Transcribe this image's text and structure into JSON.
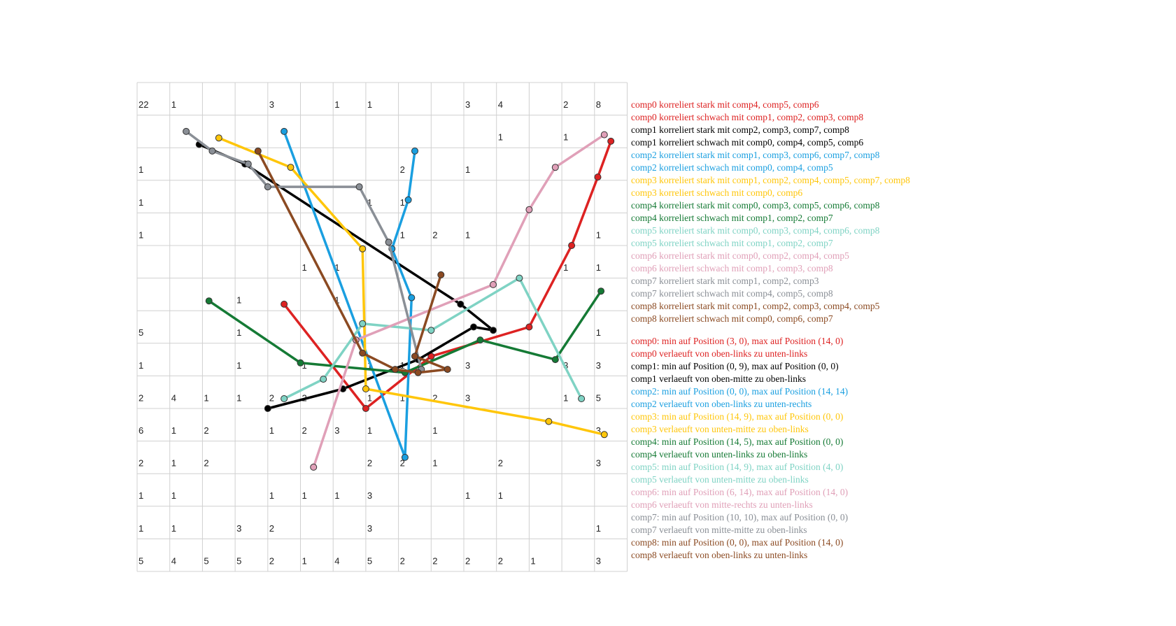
{
  "chart_data": {
    "type": "line",
    "grid": true,
    "x_range": [
      0,
      14
    ],
    "y_range": [
      0,
      14
    ],
    "cell_counts": [
      [
        "22",
        "1",
        "",
        "",
        "3",
        "",
        "1",
        "1",
        "",
        "",
        "3",
        "4",
        "",
        "2",
        "8"
      ],
      [
        "",
        "",
        "",
        "",
        "",
        "",
        "",
        "",
        "",
        "",
        "",
        "1",
        "",
        "1",
        ""
      ],
      [
        "1",
        "",
        "",
        "",
        "",
        "",
        "",
        "",
        "2",
        "",
        "1",
        "",
        "",
        "",
        ""
      ],
      [
        "1",
        "",
        "",
        "",
        "",
        "",
        "",
        "1",
        "1",
        "",
        "",
        "",
        "",
        "",
        ""
      ],
      [
        "1",
        "",
        "",
        "",
        "",
        "",
        "",
        "",
        "1",
        "2",
        "1",
        "",
        "",
        "",
        "1"
      ],
      [
        "",
        "",
        "",
        "",
        "",
        "1",
        "1",
        "",
        "",
        "",
        "",
        "",
        "",
        "1",
        "1"
      ],
      [
        "",
        "",
        "",
        "1",
        "",
        "",
        "1",
        "",
        "",
        "",
        "",
        "",
        "",
        "",
        ""
      ],
      [
        "5",
        "",
        "",
        "1",
        "",
        "",
        "",
        "",
        "",
        "",
        "",
        "",
        "",
        "",
        "1"
      ],
      [
        "1",
        "",
        "",
        "1",
        "",
        "1",
        "",
        "1",
        "1",
        "",
        "3",
        "",
        "",
        "3",
        "3"
      ],
      [
        "2",
        "4",
        "1",
        "1",
        "2",
        "2",
        "",
        "1",
        "1",
        "2",
        "3",
        "",
        "",
        "1",
        "5"
      ],
      [
        "6",
        "1",
        "2",
        "",
        "1",
        "2",
        "3",
        "1",
        "",
        "1",
        "",
        "",
        "",
        "",
        "3"
      ],
      [
        "2",
        "1",
        "2",
        "",
        "",
        "",
        "",
        "2",
        "2",
        "1",
        "",
        "2",
        "",
        "",
        "3"
      ],
      [
        "1",
        "1",
        "",
        "",
        "1",
        "1",
        "1",
        "3",
        "",
        "",
        "1",
        "1",
        "",
        "",
        ""
      ],
      [
        "1",
        "1",
        "",
        "3",
        "2",
        "",
        "",
        "3",
        "",
        "",
        "",
        "",
        "",
        "",
        "1"
      ],
      [
        "5",
        "4",
        "5",
        "5",
        "2",
        "1",
        "4",
        "5",
        "2",
        "2",
        "2",
        "2",
        "1",
        "",
        "3"
      ]
    ],
    "series": [
      {
        "name": "comp0",
        "color": "#dd2222",
        "points": [
          [
            4,
            6.3
          ],
          [
            6.5,
            9.5
          ],
          [
            8.5,
            7.9
          ],
          [
            11.5,
            7.0
          ],
          [
            12.8,
            4.5
          ],
          [
            13.6,
            2.4
          ],
          [
            14,
            1.3
          ]
        ]
      },
      {
        "name": "comp1",
        "color": "#000000",
        "points": [
          [
            3.5,
            9.5
          ],
          [
            5.8,
            8.9
          ],
          [
            8.1,
            8.0
          ],
          [
            9.8,
            7.0
          ],
          [
            10.4,
            7.1
          ],
          [
            9.4,
            6.3
          ],
          [
            2.8,
            2.0
          ],
          [
            1.4,
            1.4
          ]
        ]
      },
      {
        "name": "comp2",
        "color": "#1a9fe0",
        "points": [
          [
            8.0,
            1.6
          ],
          [
            7.8,
            3.1
          ],
          [
            7.3,
            4.6
          ],
          [
            7.9,
            6.1
          ],
          [
            7.7,
            11.0
          ],
          [
            4.0,
            1.0
          ]
        ]
      },
      {
        "name": "comp3",
        "color": "#ffc60a",
        "points": [
          [
            2.0,
            1.2
          ],
          [
            4.2,
            2.1
          ],
          [
            6.4,
            4.6
          ],
          [
            6.5,
            8.9
          ],
          [
            12.1,
            9.9
          ],
          [
            13.8,
            10.3
          ]
        ]
      },
      {
        "name": "comp4",
        "color": "#157a35",
        "points": [
          [
            1.7,
            6.2
          ],
          [
            4.5,
            8.1
          ],
          [
            7.7,
            8.4
          ],
          [
            10.0,
            7.4
          ],
          [
            12.3,
            8.0
          ],
          [
            13.7,
            5.9
          ]
        ]
      },
      {
        "name": "comp5",
        "color": "#7fd3c4",
        "points": [
          [
            4.0,
            9.2
          ],
          [
            5.2,
            8.6
          ],
          [
            6.4,
            6.9
          ],
          [
            8.5,
            7.1
          ],
          [
            11.2,
            5.5
          ],
          [
            13.1,
            9.2
          ]
        ]
      },
      {
        "name": "comp6",
        "color": "#e0a0b8",
        "points": [
          [
            4.9,
            11.3
          ],
          [
            6.2,
            7.4
          ],
          [
            10.4,
            5.7
          ],
          [
            11.5,
            3.4
          ],
          [
            12.3,
            2.1
          ],
          [
            13.8,
            1.1
          ]
        ]
      },
      {
        "name": "comp7",
        "color": "#8a8f96",
        "points": [
          [
            1.0,
            1.0
          ],
          [
            1.8,
            1.6
          ],
          [
            2.9,
            2.0
          ],
          [
            3.5,
            2.7
          ],
          [
            6.3,
            2.7
          ],
          [
            7.2,
            4.4
          ],
          [
            8.2,
            8.3
          ]
        ]
      },
      {
        "name": "comp8",
        "color": "#8b4a22",
        "points": [
          [
            3.2,
            1.6
          ],
          [
            6.4,
            7.8
          ],
          [
            7.4,
            8.3
          ],
          [
            8.1,
            8.4
          ],
          [
            9.0,
            8.3
          ],
          [
            8.0,
            7.9
          ],
          [
            8.8,
            5.4
          ]
        ]
      }
    ]
  },
  "legend": {
    "correlations": [
      {
        "text": "comp0 korreliert stark mit comp4, comp5, comp6",
        "color": "#dd2222"
      },
      {
        "text": "comp0 korreliert schwach mit comp1, comp2, comp3, comp8",
        "color": "#dd2222"
      },
      {
        "text": "comp1 korreliert stark mit comp2, comp3, comp7, comp8",
        "color": "#000000"
      },
      {
        "text": "comp1 korreliert schwach mit comp0, comp4, comp5, comp6",
        "color": "#000000"
      },
      {
        "text": "comp2 korreliert stark mit comp1, comp3, comp6, comp7, comp8",
        "color": "#1a9fe0"
      },
      {
        "text": "comp2 korreliert schwach mit comp0, comp4, comp5",
        "color": "#1a9fe0"
      },
      {
        "text": "comp3 korreliert stark mit comp1, comp2, comp4, comp5, comp7, comp8",
        "color": "#ffc60a"
      },
      {
        "text": "comp3 korreliert schwach mit comp0, comp6",
        "color": "#ffc60a"
      },
      {
        "text": "comp4 korreliert stark mit comp0, comp3, comp5, comp6, comp8",
        "color": "#157a35"
      },
      {
        "text": "comp4 korreliert schwach mit comp1, comp2, comp7",
        "color": "#157a35"
      },
      {
        "text": "comp5 korreliert stark mit comp0, comp3, comp4, comp6, comp8",
        "color": "#7fd3c4"
      },
      {
        "text": "comp5 korreliert schwach mit comp1, comp2, comp7",
        "color": "#7fd3c4"
      },
      {
        "text": "comp6 korreliert stark mit comp0, comp2, comp4, comp5",
        "color": "#e0a0b8"
      },
      {
        "text": "comp6 korreliert schwach mit comp1, comp3, comp8",
        "color": "#e0a0b8"
      },
      {
        "text": "comp7 korreliert stark mit comp1, comp2, comp3",
        "color": "#8a8f96"
      },
      {
        "text": "comp7 korreliert schwach mit comp4, comp5, comp8",
        "color": "#8a8f96"
      },
      {
        "text": "comp8 korreliert stark mit comp1, comp2, comp3, comp4, comp5",
        "color": "#8b4a22"
      },
      {
        "text": "comp8 korreliert schwach mit comp0, comp6, comp7",
        "color": "#8b4a22"
      }
    ],
    "positions": [
      {
        "text": "comp0: min auf Position (3, 0), max auf Position (14, 0)",
        "color": "#dd2222"
      },
      {
        "text": "comp0 verlaeuft von oben-links zu unten-links",
        "color": "#dd2222"
      },
      {
        "text": "comp1: min auf Position (0, 9), max auf Position (0, 0)",
        "color": "#000000"
      },
      {
        "text": "comp1 verlaeuft von oben-mitte zu oben-links",
        "color": "#000000"
      },
      {
        "text": "comp2: min auf Position (0, 0), max auf Position (14, 14)",
        "color": "#1a9fe0"
      },
      {
        "text": "comp2 verlaeuft von oben-links zu unten-rechts",
        "color": "#1a9fe0"
      },
      {
        "text": "comp3: min auf Position (14, 9), max auf Position (0, 0)",
        "color": "#ffc60a"
      },
      {
        "text": "comp3 verlaeuft von unten-mitte zu oben-links",
        "color": "#ffc60a"
      },
      {
        "text": "comp4: min auf Position (14, 5), max auf Position (0, 0)",
        "color": "#157a35"
      },
      {
        "text": "comp4 verlaeuft von unten-links zu oben-links",
        "color": "#157a35"
      },
      {
        "text": "comp5: min auf Position (14, 9), max auf Position (4, 0)",
        "color": "#7fd3c4"
      },
      {
        "text": "comp5 verlaeuft von unten-mitte zu oben-links",
        "color": "#7fd3c4"
      },
      {
        "text": "comp6: min auf Position (6, 14), max auf Position (14, 0)",
        "color": "#e0a0b8"
      },
      {
        "text": "comp6 verlaeuft von mitte-rechts zu unten-links",
        "color": "#e0a0b8"
      },
      {
        "text": "comp7: min auf Position (10, 10), max auf Position (0, 0)",
        "color": "#8a8f96"
      },
      {
        "text": "comp7 verlaeuft von mitte-mitte zu oben-links",
        "color": "#8a8f96"
      },
      {
        "text": "comp8: min auf Position (0, 0), max auf Position (14, 0)",
        "color": "#8b4a22"
      },
      {
        "text": "comp8 verlaeuft von oben-links zu unten-links",
        "color": "#8b4a22"
      }
    ]
  }
}
